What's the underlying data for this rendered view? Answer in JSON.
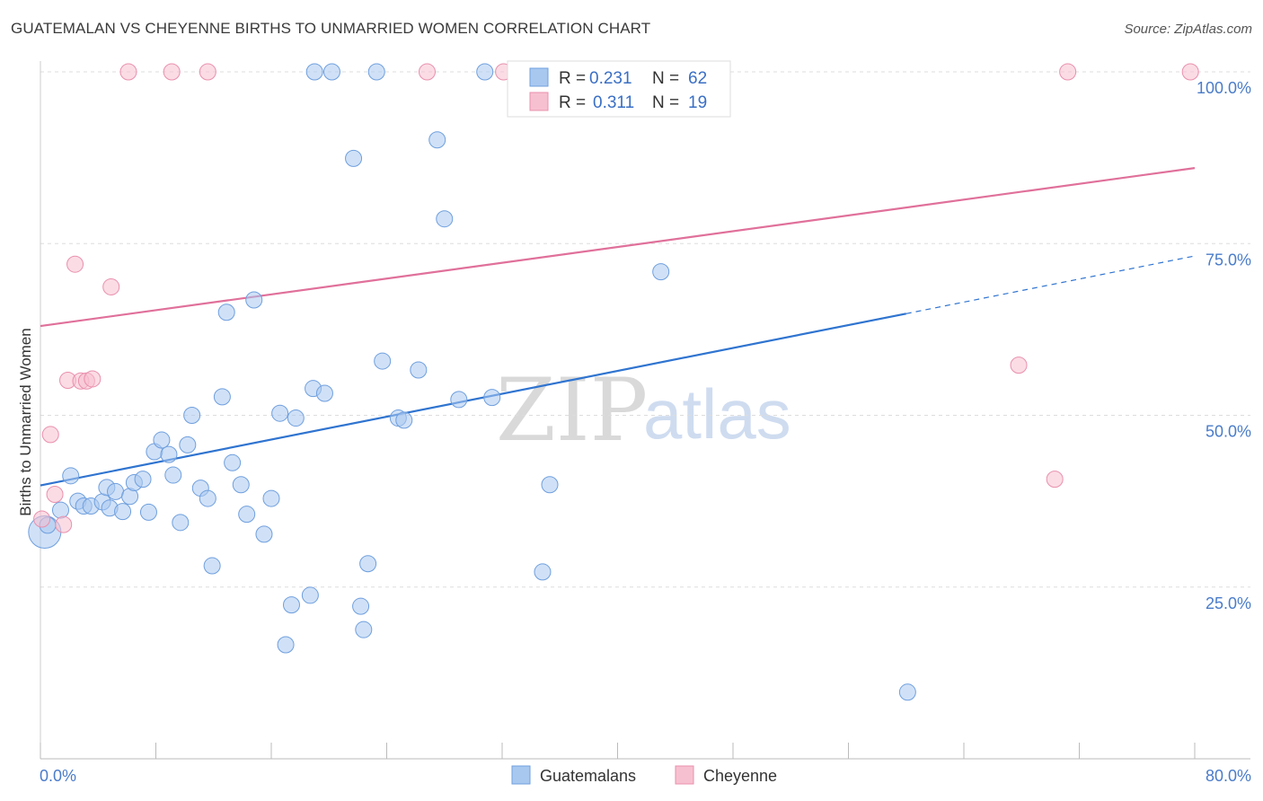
{
  "title": "GUATEMALAN VS CHEYENNE BIRTHS TO UNMARRIED WOMEN CORRELATION CHART",
  "source": "Source: ZipAtlas.com",
  "watermark": {
    "zip": "ZIP",
    "atlas": "atlas"
  },
  "colors": {
    "blue_fill": "#a9c8f0",
    "blue_stroke": "#6f9fde",
    "blue_line": "#2f74d0",
    "pink_fill": "#f7c0d0",
    "pink_stroke": "#e990ad",
    "pink_line": "#e0709a",
    "grid": "#dddddd",
    "tick_label": "#4a7cc9"
  },
  "legend": {
    "rows": [
      {
        "r_label": "R =",
        "r_value": "0.231",
        "n_label": "N =",
        "n_value": "62",
        "series": "Guatemalans"
      },
      {
        "r_label": "R =",
        "r_value": "0.311",
        "n_label": "N =",
        "n_value": "19",
        "series": "Cheyenne"
      }
    ]
  },
  "chart_data": {
    "type": "scatter",
    "title": "GUATEMALAN VS CHEYENNE BIRTHS TO UNMARRIED WOMEN CORRELATION CHART",
    "xlabel": "",
    "ylabel": "Births to Unmarried Women",
    "xlim": [
      0,
      80
    ],
    "ylim": [
      0,
      100
    ],
    "x_tick_labels": [
      "0.0%",
      "80.0%"
    ],
    "y_tick_labels": [
      "100.0%",
      "75.0%",
      "50.0%",
      "25.0%"
    ],
    "y_ticks": [
      100,
      75,
      50,
      25
    ],
    "series": [
      {
        "name": "Guatemalans",
        "color": "blue",
        "r": 0.231,
        "n": 62,
        "trend": {
          "x0": 0,
          "y0": 39.8,
          "x1": 60,
          "y1": 64.8,
          "dashed_to_x": 80,
          "dashed_to_y": 73.2
        },
        "points": [
          [
            0.3,
            33.0,
            18
          ],
          [
            0.5,
            34.0,
            9
          ],
          [
            1.4,
            36.2,
            9
          ],
          [
            2.1,
            41.2,
            9
          ],
          [
            2.6,
            37.5,
            9
          ],
          [
            3.0,
            36.8,
            9
          ],
          [
            3.5,
            36.8,
            9
          ],
          [
            4.3,
            37.4,
            9
          ],
          [
            4.6,
            39.5,
            9
          ],
          [
            4.8,
            36.5,
            9
          ],
          [
            5.2,
            38.9,
            9
          ],
          [
            5.7,
            36.0,
            9
          ],
          [
            6.2,
            38.2,
            9
          ],
          [
            6.5,
            40.2,
            9
          ],
          [
            7.1,
            40.7,
            9
          ],
          [
            7.5,
            35.9,
            9
          ],
          [
            7.9,
            44.7,
            9
          ],
          [
            8.4,
            46.4,
            9
          ],
          [
            8.9,
            44.3,
            9
          ],
          [
            9.2,
            41.3,
            9
          ],
          [
            9.7,
            34.4,
            9
          ],
          [
            10.2,
            45.7,
            9
          ],
          [
            10.5,
            50.0,
            9
          ],
          [
            11.1,
            39.4,
            9
          ],
          [
            11.6,
            37.9,
            9
          ],
          [
            11.9,
            28.1,
            9
          ],
          [
            12.6,
            52.7,
            9
          ],
          [
            12.9,
            65.0,
            9
          ],
          [
            13.3,
            43.1,
            9
          ],
          [
            13.9,
            39.9,
            9
          ],
          [
            14.3,
            35.6,
            9
          ],
          [
            14.8,
            66.8,
            9
          ],
          [
            15.5,
            32.7,
            9
          ],
          [
            16.0,
            37.9,
            9
          ],
          [
            16.6,
            50.3,
            9
          ],
          [
            17.0,
            16.6,
            9
          ],
          [
            17.4,
            22.4,
            9
          ],
          [
            17.7,
            49.6,
            9
          ],
          [
            18.7,
            23.8,
            9
          ],
          [
            18.9,
            53.9,
            9
          ],
          [
            19.7,
            53.2,
            9
          ],
          [
            19.0,
            100.0,
            9
          ],
          [
            20.2,
            100.0,
            9
          ],
          [
            21.7,
            87.4,
            9
          ],
          [
            22.2,
            22.2,
            9
          ],
          [
            22.4,
            18.8,
            9
          ],
          [
            22.7,
            28.4,
            9
          ],
          [
            23.3,
            100.0,
            9
          ],
          [
            23.7,
            57.9,
            9
          ],
          [
            24.8,
            49.6,
            9
          ],
          [
            25.2,
            49.3,
            9
          ],
          [
            26.2,
            56.6,
            9
          ],
          [
            27.5,
            90.1,
            9
          ],
          [
            28.0,
            78.6,
            9
          ],
          [
            29.0,
            52.3,
            9
          ],
          [
            30.8,
            100.0,
            9
          ],
          [
            31.3,
            52.6,
            9
          ],
          [
            34.8,
            27.2,
            9
          ],
          [
            35.3,
            39.9,
            9
          ],
          [
            43.0,
            70.9,
            9
          ],
          [
            60.1,
            9.7,
            9
          ]
        ]
      },
      {
        "name": "Cheyenne",
        "color": "pink",
        "r": 0.311,
        "n": 19,
        "trend": {
          "x0": 0,
          "y0": 63.0,
          "x1": 80,
          "y1": 86.0
        },
        "points": [
          [
            0.1,
            34.9,
            9
          ],
          [
            0.7,
            47.2,
            9
          ],
          [
            1.0,
            38.5,
            9
          ],
          [
            1.6,
            34.1,
            9
          ],
          [
            1.9,
            55.1,
            9
          ],
          [
            2.4,
            72.0,
            9
          ],
          [
            2.8,
            55.0,
            9
          ],
          [
            3.2,
            55.0,
            9
          ],
          [
            3.6,
            55.3,
            9
          ],
          [
            4.9,
            68.7,
            9
          ],
          [
            6.1,
            100.0,
            9
          ],
          [
            9.1,
            100.0,
            9
          ],
          [
            11.6,
            100.0,
            9
          ],
          [
            26.8,
            100.0,
            9
          ],
          [
            32.1,
            100.0,
            9
          ],
          [
            67.8,
            57.3,
            9
          ],
          [
            70.3,
            40.7,
            9
          ],
          [
            71.2,
            100.0,
            9
          ],
          [
            79.7,
            100.0,
            9
          ]
        ]
      }
    ],
    "legend_position": "top-center",
    "bottom_legend": [
      "Guatemalans",
      "Cheyenne"
    ]
  }
}
